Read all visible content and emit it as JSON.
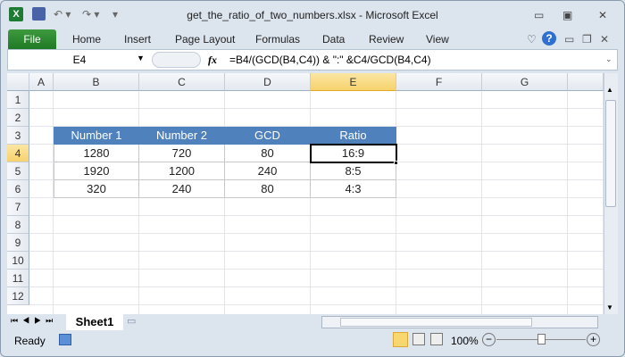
{
  "window": {
    "title": "get_the_ratio_of_two_numbers.xlsx  -  Microsoft Excel"
  },
  "ribbon": {
    "tabs": [
      "File",
      "Home",
      "Insert",
      "Page Layout",
      "Formulas",
      "Data",
      "Review",
      "View"
    ]
  },
  "formula_bar": {
    "name_box": "E4",
    "fx": "fx",
    "formula": "=B4/(GCD(B4,C4)) & \":\" &C4/GCD(B4,C4)"
  },
  "columns": [
    "A",
    "B",
    "C",
    "D",
    "E",
    "F",
    "G"
  ],
  "rows": [
    "1",
    "2",
    "3",
    "4",
    "5",
    "6",
    "7",
    "8",
    "9",
    "10",
    "11",
    "12"
  ],
  "selected_cell": "E4",
  "table": {
    "headers": [
      "Number 1",
      "Number 2",
      "GCD",
      "Ratio"
    ],
    "rows": [
      [
        "1280",
        "720",
        "80",
        "16:9"
      ],
      [
        "1920",
        "1200",
        "240",
        "8:5"
      ],
      [
        "320",
        "240",
        "80",
        "4:3"
      ]
    ]
  },
  "colors": {
    "header_fill": "#4f81bd",
    "file_tab": "#2a8a2f",
    "selection": "#f7d36e"
  },
  "sheets": [
    "Sheet1"
  ],
  "status": {
    "ready": "Ready",
    "zoom": "100%"
  }
}
